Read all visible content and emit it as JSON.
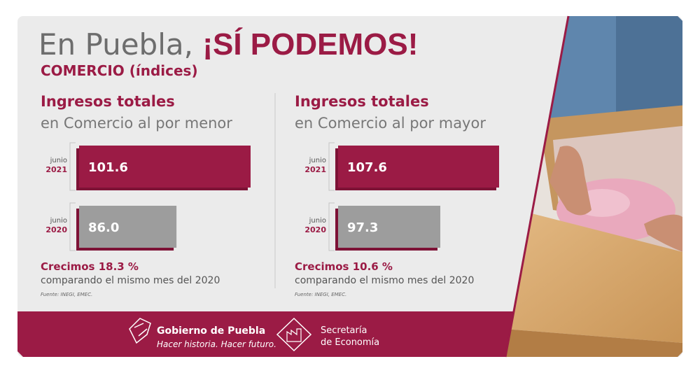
{
  "header": {
    "title_prefix": "En Puebla,",
    "title_emphasis": "¡SÍ PODEMOS!",
    "subtitle": "COMERCIO (índices)"
  },
  "chart_data": [
    {
      "type": "bar",
      "orientation": "horizontal",
      "title": "Ingresos totales",
      "subtitle": "en Comercio al por menor",
      "categories": [
        {
          "month": "junio",
          "year": "2021"
        },
        {
          "month": "junio",
          "year": "2020"
        }
      ],
      "values": [
        101.6,
        86.0
      ],
      "value_labels": [
        "101.6",
        "86.0"
      ],
      "colors": [
        "#9b1b45",
        "#9d9d9d"
      ],
      "xlim": [
        65.5,
        101.6
      ],
      "note": "Crecimos 18.3 %",
      "comparison": "comparando el mismo mes del  2020",
      "source": "Fuente: INEGI, EMEC."
    },
    {
      "type": "bar",
      "orientation": "horizontal",
      "title": "Ingresos totales",
      "subtitle": "en Comercio al por mayor",
      "categories": [
        {
          "month": "junio",
          "year": "2021"
        },
        {
          "month": "junio",
          "year": "2020"
        }
      ],
      "values": [
        107.6,
        97.3
      ],
      "value_labels": [
        "107.6",
        "97.3"
      ],
      "colors": [
        "#9b1b45",
        "#9d9d9d"
      ],
      "xlim": [
        79.4,
        107.6
      ],
      "note": "Crecimos 10.6 %",
      "comparison": "comparando el mismo mes  del 2020",
      "source": "Fuente: INEGI, EMEC."
    }
  ],
  "footer": {
    "government": "Gobierno de Puebla",
    "slogan": "Hacer historia. Hacer futuro.",
    "secretary_line1": "Secretaría",
    "secretary_line2": "de Economía"
  }
}
